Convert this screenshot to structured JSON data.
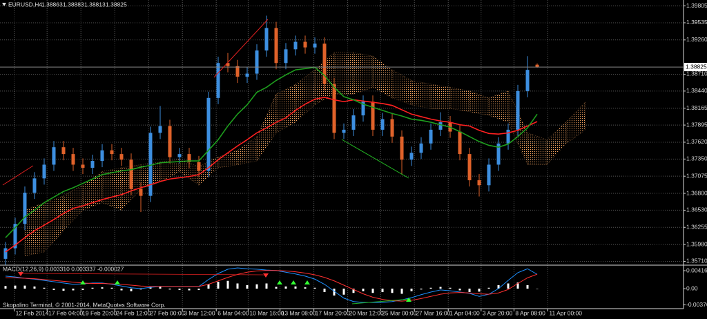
{
  "chart_data": [
    {
      "type": "candlestick",
      "title": "EURUSD,H4",
      "candles": {
        "open": [
          1.3575,
          1.3592,
          1.3631,
          1.3681,
          1.3704,
          1.3726,
          1.3754,
          1.3743,
          1.3726,
          1.3721,
          1.3732,
          1.3749,
          1.3743,
          1.3734,
          1.3687,
          1.3676,
          1.3777,
          1.3788,
          1.3738,
          1.3743,
          1.373,
          1.3716,
          1.3833,
          1.3889,
          1.3884,
          1.3867,
          1.3872,
          1.3909,
          1.3945,
          1.3889,
          1.3911,
          1.3923,
          1.3914,
          1.392,
          1.3855,
          1.3777,
          1.3782,
          1.3805,
          1.3827,
          1.3782,
          1.3799,
          1.3771,
          1.3734,
          1.3745,
          1.376,
          1.3782,
          1.3794,
          1.3779,
          1.3743,
          1.3701,
          1.3693,
          1.3726,
          1.376,
          1.3782,
          1.3844,
          1.38863
        ],
        "high": [
          1.3602,
          1.3641,
          1.3691,
          1.3714,
          1.3736,
          1.3764,
          1.3764,
          1.3753,
          1.3736,
          1.3742,
          1.3759,
          1.3759,
          1.3753,
          1.3744,
          1.3697,
          1.3787,
          1.382,
          1.3798,
          1.3753,
          1.3753,
          1.374,
          1.3843,
          1.3899,
          1.3905,
          1.3894,
          1.3882,
          1.3919,
          1.3965,
          1.3955,
          1.3921,
          1.3933,
          1.3933,
          1.393,
          1.393,
          1.3865,
          1.3792,
          1.3815,
          1.3837,
          1.3837,
          1.3809,
          1.3809,
          1.3781,
          1.3755,
          1.377,
          1.3792,
          1.381,
          1.3804,
          1.3789,
          1.3753,
          1.3711,
          1.3736,
          1.377,
          1.3792,
          1.3854,
          1.39,
          1.38883
        ],
        "low": [
          1.3565,
          1.3582,
          1.3621,
          1.3671,
          1.3694,
          1.3716,
          1.3733,
          1.3716,
          1.3711,
          1.3711,
          1.3722,
          1.3733,
          1.3724,
          1.3677,
          1.365,
          1.3666,
          1.3767,
          1.3728,
          1.3728,
          1.372,
          1.3706,
          1.3706,
          1.3823,
          1.3874,
          1.3857,
          1.3857,
          1.3862,
          1.3899,
          1.3879,
          1.3879,
          1.3901,
          1.3904,
          1.3904,
          1.3845,
          1.3767,
          1.3767,
          1.3772,
          1.3795,
          1.3772,
          1.3772,
          1.3761,
          1.371,
          1.3724,
          1.3735,
          1.375,
          1.3772,
          1.3769,
          1.3733,
          1.3691,
          1.3675,
          1.3683,
          1.3716,
          1.375,
          1.3772,
          1.3834,
          1.38813
        ],
        "close": [
          1.3592,
          1.3631,
          1.3681,
          1.3704,
          1.3726,
          1.3754,
          1.3743,
          1.3726,
          1.3721,
          1.3732,
          1.3749,
          1.3743,
          1.3734,
          1.3687,
          1.3676,
          1.3777,
          1.3788,
          1.3738,
          1.3743,
          1.373,
          1.3716,
          1.3833,
          1.3889,
          1.3884,
          1.3867,
          1.3872,
          1.3909,
          1.3945,
          1.3889,
          1.3911,
          1.3923,
          1.3914,
          1.392,
          1.3855,
          1.3777,
          1.3782,
          1.3805,
          1.3827,
          1.3782,
          1.3799,
          1.3771,
          1.3734,
          1.3745,
          1.376,
          1.3782,
          1.3794,
          1.3779,
          1.3743,
          1.3701,
          1.3693,
          1.3726,
          1.376,
          1.3782,
          1.3844,
          1.3878,
          1.38825
        ],
        "up_color": "#3d8fe0",
        "down_color": "#e0622a"
      },
      "lines": [
        {
          "color": "#ff2020",
          "values": [
            1.3586,
            1.3597,
            1.3609,
            1.362,
            1.3629,
            1.3638,
            1.3648,
            1.3656,
            1.366,
            1.3665,
            1.367,
            1.3674,
            1.3678,
            1.3684,
            1.3689,
            1.3694,
            1.3699,
            1.3703,
            1.3705,
            1.3707,
            1.371,
            1.3721,
            1.3734,
            1.3745,
            1.3756,
            1.3766,
            1.3777,
            1.3785,
            1.3794,
            1.3801,
            1.3813,
            1.3823,
            1.3831,
            1.3834,
            1.383,
            1.3827,
            1.383,
            1.3828,
            1.3826,
            1.3824,
            1.3821,
            1.3814,
            1.3807,
            1.3803,
            1.3799,
            1.3796,
            1.3794,
            1.379,
            1.3788,
            1.3781,
            1.3776,
            1.3775,
            1.3777,
            1.3781,
            1.3788,
            1.3795
          ]
        },
        {
          "color": "#1e9e1e",
          "values": [
            1.3609,
            1.3625,
            1.3642,
            1.3653,
            1.3665,
            1.3674,
            1.3683,
            1.3689,
            1.3696,
            1.3703,
            1.371,
            1.3713,
            1.3716,
            1.3718,
            1.3722,
            1.3725,
            1.3729,
            1.373,
            1.3731,
            1.3732,
            1.3732,
            1.3749,
            1.3766,
            1.3788,
            1.3807,
            1.3822,
            1.3842,
            1.385,
            1.3861,
            1.387,
            1.3878,
            1.388,
            1.3882,
            1.3869,
            1.385,
            1.3835,
            1.383,
            1.3823,
            1.3818,
            1.3813,
            1.3808,
            1.3804,
            1.3799,
            1.3797,
            1.3794,
            1.379,
            1.3786,
            1.3779,
            1.3771,
            1.3763,
            1.3757,
            1.3754,
            1.3759,
            1.3771,
            1.3785,
            1.3807
          ]
        }
      ],
      "cloud": {
        "color": "#f4a460",
        "x": [
          2,
          4,
          6,
          8,
          10,
          12,
          14,
          16,
          18,
          20,
          22,
          24,
          26,
          28,
          30,
          32,
          34,
          36,
          38,
          40,
          42,
          44,
          46,
          48,
          50,
          52,
          54,
          56,
          58,
          60
        ],
        "upper": [
          1.3653,
          1.3665,
          1.3676,
          1.3693,
          1.3715,
          1.3721,
          1.3726,
          1.373,
          1.3734,
          1.3723,
          1.3738,
          1.3749,
          1.3771,
          1.3839,
          1.3855,
          1.3878,
          1.3906,
          1.3906,
          1.39,
          1.3878,
          1.3861,
          1.3855,
          1.385,
          1.3844,
          1.3833,
          1.3844,
          1.3777,
          1.3766,
          1.3794,
          1.3827
        ],
        "lower": [
          1.358,
          1.3586,
          1.362,
          1.3653,
          1.3665,
          1.3653,
          1.3687,
          1.3698,
          1.3715,
          1.3693,
          1.3721,
          1.3726,
          1.3732,
          1.3777,
          1.3794,
          1.3822,
          1.3839,
          1.3839,
          1.385,
          1.3833,
          1.3822,
          1.3816,
          1.3816,
          1.3811,
          1.3805,
          1.3794,
          1.3726,
          1.3726,
          1.376,
          1.3782
        ]
      },
      "xlim": [
        -0.57,
        70.14
      ],
      "xticks": [
        {
          "value": 0.9,
          "label": "12 Feb 2014"
        },
        {
          "value": 4.3,
          "label": "17 Feb 04:00"
        },
        {
          "value": 7.8,
          "label": "19 Feb 20:00"
        },
        {
          "value": 11.3,
          "label": "24 Feb 12:00"
        },
        {
          "value": 14.8,
          "label": "27 Feb 00:00"
        },
        {
          "value": 18.3,
          "label": "3 Mar 12:00"
        },
        {
          "value": 21.8,
          "label": "6 Mar 04:00"
        },
        {
          "value": 25.1,
          "label": "10 Mar 16:00"
        },
        {
          "value": 28.4,
          "label": "13 Mar 08:00"
        },
        {
          "value": 31.9,
          "label": "17 Mar 20:00"
        },
        {
          "value": 35.4,
          "label": "20 Mar 12:00"
        },
        {
          "value": 38.8,
          "label": "25 Mar 00:00"
        },
        {
          "value": 42.3,
          "label": "27 Mar 16:00"
        },
        {
          "value": 45.8,
          "label": "1 Apr 04:00"
        },
        {
          "value": 49.2,
          "label": "3 Apr 20:00"
        },
        {
          "value": 52.6,
          "label": "8 Apr 08:00"
        },
        {
          "value": 56.1,
          "label": "11 Apr 00:00"
        }
      ],
      "ylim": [
        1.3566,
        1.399
      ],
      "yticks": [
        1.39805,
        1.39535,
        {
          "value": 1.3926,
          "label": "1.39260"
        },
        {
          "value": 1.3871,
          "label": "1.38710"
        },
        {
          "value": 1.3844,
          "label": "1.38440"
        },
        1.38165,
        1.37895,
        {
          "value": 1.3762,
          "label": "1.37620"
        },
        {
          "value": 1.3735,
          "label": "1.37350"
        },
        1.37075,
        {
          "value": 1.368,
          "label": "1.36800"
        },
        {
          "value": 1.3653,
          "label": "1.36530"
        },
        1.36255,
        {
          "value": 1.3598,
          "label": "1.35980"
        },
        {
          "value": 1.3571,
          "label": "1.35710"
        }
      ],
      "grid": true
    },
    {
      "type": "indicator",
      "title": "MACD(12,26,9) 0.003310 0.003337 -0.000027",
      "histogram": {
        "color": "#ffffff",
        "values": [
          0.0006,
          0.0007,
          0.0007,
          0.0005,
          0.0002,
          -0.0003,
          -0.0005,
          -0.0004,
          -0.0003,
          0.0002,
          0.0003,
          0.0002,
          -0.0004,
          -0.0006,
          -0.0002,
          0.0004,
          0.0005,
          -0.0002,
          -0.0003,
          -0.0004,
          -0.0003,
          0.001,
          0.0016,
          0.0018,
          0.0012,
          0.0008,
          0.001,
          0.0012,
          0.0004,
          0.0005,
          0.0005,
          0.0003,
          0.0002,
          -0.0008,
          -0.0016,
          -0.0014,
          -0.001,
          -0.0006,
          -0.001,
          -0.0008,
          -0.001,
          -0.0012,
          -0.0006,
          -0.0002,
          0.0002,
          0.0004,
          0.0002,
          -0.0004,
          -0.0008,
          -0.0007,
          0.0002,
          0.0008,
          0.0012,
          0.0014,
          0.0008,
          -2.7e-05
        ]
      },
      "lines": [
        {
          "color": "#1e90ff",
          "values": [
            0.0029,
            0.0027,
            0.0024,
            0.0022,
            0.0019,
            0.0016,
            0.0013,
            0.001,
            0.0011,
            0.0013,
            0.0013,
            0.001,
            0.0006,
            0.0002,
            0,
            0.0003,
            0.0005,
            0.0005,
            0.0005,
            0.0005,
            0.0005,
            0.0021,
            0.0035,
            0.0045,
            0.0048,
            0.0046,
            0.0045,
            0.0043,
            0.0042,
            0.0038,
            0.0034,
            0.0029,
            0.0022,
            0.001,
            -0.0006,
            -0.0022,
            -0.003,
            -0.0032,
            -0.0032,
            -0.0032,
            -0.003,
            -0.0026,
            -0.0021,
            -0.0014,
            -0.0008,
            -0.0003,
            -0.0005,
            -0.0008,
            -0.0011,
            -0.0018,
            -0.0013,
            0,
            0.0019,
            0.0037,
            0.0046,
            0.00331
          ]
        },
        {
          "color": "#ff3030",
          "values": [
            0.0025,
            0.0025,
            0.0024,
            0.0023,
            0.0021,
            0.0019,
            0.0017,
            0.0015,
            0.0013,
            0.0012,
            0.0012,
            0.0011,
            0.001,
            0.0008,
            0.0006,
            0.0005,
            0.0005,
            0.0005,
            0.0005,
            0.0005,
            0.0005,
            0.001,
            0.0018,
            0.0026,
            0.0033,
            0.0038,
            0.0041,
            0.0042,
            0.0042,
            0.0041,
            0.0039,
            0.0036,
            0.0032,
            0.0026,
            0.0018,
            0.0008,
            -0.0002,
            -0.0012,
            -0.002,
            -0.0025,
            -0.0028,
            -0.0029,
            -0.0027,
            -0.0023,
            -0.0018,
            -0.0013,
            -0.001,
            -0.0009,
            -0.001,
            -0.0012,
            -0.0013,
            -0.001,
            -0.0002,
            0.0012,
            0.0025,
            0.003337
          ]
        }
      ],
      "ylim": [
        -0.00464,
        0.00528
      ],
      "yticks": [
        0.00416,
        {
          "value": 0,
          "label": "0.00"
        },
        -0.003766
      ]
    }
  ],
  "footer": "Skopalino Terminal, © 2001-2014, MetaQuotes Software Corp."
}
